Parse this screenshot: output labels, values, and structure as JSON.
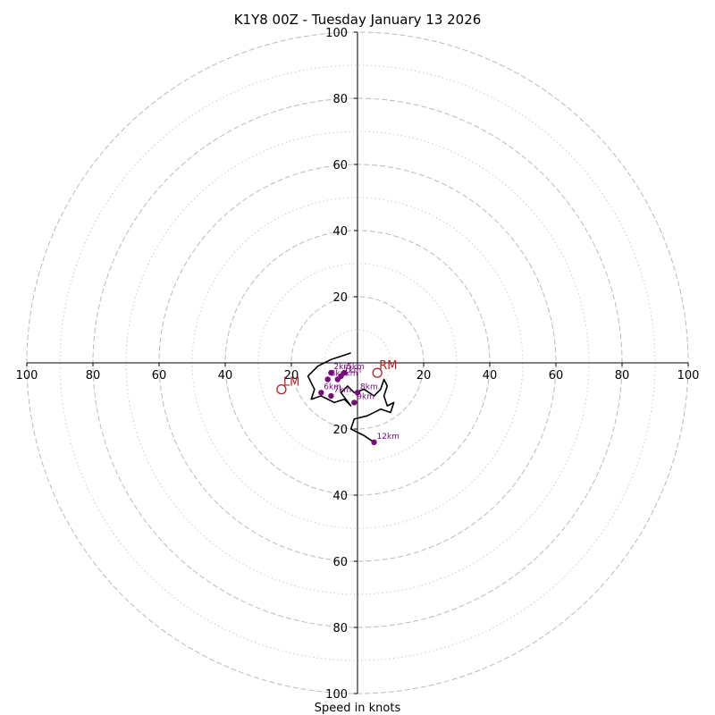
{
  "chart_data": {
    "type": "hodograph",
    "title": "K1Y8 00Z - Tuesday January 13 2026",
    "xlabel": "Speed in knots",
    "units": "knots",
    "xlim": [
      -100,
      100
    ],
    "ylim": [
      -100,
      100
    ],
    "ring_major": [
      20,
      40,
      60,
      80,
      100
    ],
    "ring_minor": [
      10,
      30,
      50,
      70,
      90
    ],
    "x_tick_labels": [
      "100",
      "80",
      "60",
      "40",
      "20",
      "20",
      "40",
      "60",
      "80",
      "100"
    ],
    "y_tick_labels": [
      "100",
      "80",
      "60",
      "40",
      "20",
      "20",
      "40",
      "60",
      "80",
      "100"
    ],
    "x_tick_values": [
      -100,
      -80,
      -60,
      -40,
      -20,
      20,
      40,
      60,
      80,
      100
    ],
    "y_tick_values": [
      100,
      80,
      60,
      40,
      20,
      -20,
      -40,
      -60,
      -80,
      -100
    ],
    "trace": [
      [
        -2,
        3
      ],
      [
        -5,
        2
      ],
      [
        -8,
        1
      ],
      [
        -12,
        -1
      ],
      [
        -15,
        -4
      ],
      [
        -13,
        -8
      ],
      [
        -14,
        -11
      ],
      [
        -11,
        -10
      ],
      [
        -7,
        -12
      ],
      [
        -4,
        -11
      ],
      [
        -2,
        -13
      ],
      [
        -5,
        -9
      ],
      [
        -3,
        -7
      ],
      [
        -1,
        -9
      ],
      [
        2,
        -8
      ],
      [
        5,
        -10
      ],
      [
        7,
        -8
      ],
      [
        8,
        -5
      ],
      [
        9,
        -7
      ],
      [
        8,
        -10
      ],
      [
        9,
        -13
      ],
      [
        11,
        -12
      ],
      [
        10,
        -15
      ],
      [
        7,
        -14
      ],
      [
        3,
        -16
      ],
      [
        -1,
        -17
      ],
      [
        -2,
        -20
      ],
      [
        2,
        -22
      ],
      [
        5,
        -24
      ]
    ],
    "height_markers": [
      {
        "label": "1km",
        "x": -5,
        "y": -4
      },
      {
        "label": "2km",
        "x": -8,
        "y": -3
      },
      {
        "label": "3km",
        "x": -9,
        "y": -5
      },
      {
        "label": "4km",
        "x": -6,
        "y": -5
      },
      {
        "label": "5km",
        "x": -4,
        "y": -3
      },
      {
        "label": "6km",
        "x": -11,
        "y": -9
      },
      {
        "label": "7km",
        "x": -8,
        "y": -10
      },
      {
        "label": "8km",
        "x": 0,
        "y": -9
      },
      {
        "label": "9km",
        "x": -1,
        "y": -12
      },
      {
        "label": "12km",
        "x": 5,
        "y": -24
      }
    ],
    "storm_motions": [
      {
        "label": "RM",
        "x": 6,
        "y": -3,
        "color": "#b22222"
      },
      {
        "label": "LM",
        "x": -23,
        "y": -8,
        "color": "#b22222"
      }
    ],
    "colors": {
      "trace": "#000000",
      "markers": "#7a0a7a",
      "motion": "#b22222",
      "grid": "#bbbbbb"
    }
  }
}
